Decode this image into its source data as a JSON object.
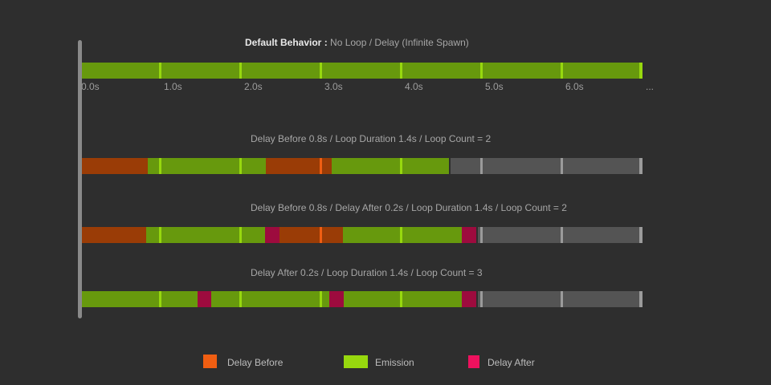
{
  "colors": {
    "background": "#2e2e2e",
    "axis": "#8a8a8a",
    "title_bright": "#e9e9e9",
    "title_text": "#a6a6a6",
    "tick_label": "#9d9d9d",
    "legend_text": "#bcbcbc",
    "emission": "#67990d",
    "emission_bright": "#97d80e",
    "delay_before": "#9a3c06",
    "delay_before_bright": "#f05e12",
    "delay_after": "#9d0b3e",
    "delay_after_bright": "#ee115e",
    "inactive": "#545454",
    "inactive_bright": "#9b9b9b"
  },
  "timeline": {
    "duration_s": 7,
    "tick_interval_s": 1,
    "axis_labels": [
      {
        "text": "0.0s",
        "t": 0
      },
      {
        "text": "1.0s",
        "t": 1
      },
      {
        "text": "2.0s",
        "t": 2
      },
      {
        "text": "3.0s",
        "t": 3
      },
      {
        "text": "4.0s",
        "t": 4
      },
      {
        "text": "5.0s",
        "t": 5
      },
      {
        "text": "6.0s",
        "t": 6
      },
      {
        "text": "...",
        "t": 7
      }
    ]
  },
  "tracks": [
    {
      "title_bold": "Default Behavior :",
      "title": "No Loop / Delay (Infinite Spawn)",
      "show_axis_labels": true,
      "segments": [
        {
          "kind": "emission",
          "start": 0,
          "end": 7
        }
      ]
    },
    {
      "title": "Delay Before 0.8s / Loop Duration 1.4s / Loop Count = 2",
      "segments": [
        {
          "kind": "delay_before",
          "start": 0,
          "end": 0.84
        },
        {
          "kind": "emission",
          "start": 0.84,
          "end": 2.31
        },
        {
          "kind": "delay_before",
          "start": 2.31,
          "end": 3.13
        },
        {
          "kind": "emission",
          "start": 3.13,
          "end": 4.59
        },
        {
          "kind": "inactive",
          "start": 4.59,
          "end": 7
        }
      ]
    },
    {
      "title": "Delay Before 0.8s / Delay After 0.2s / Loop Duration 1.4s / Loop Count = 2",
      "segments": [
        {
          "kind": "delay_before",
          "start": 0,
          "end": 0.82
        },
        {
          "kind": "emission",
          "start": 0.82,
          "end": 2.3
        },
        {
          "kind": "delay_after",
          "start": 2.3,
          "end": 2.48
        },
        {
          "kind": "delay_before",
          "start": 2.48,
          "end": 3.27
        },
        {
          "kind": "emission",
          "start": 3.27,
          "end": 4.75
        },
        {
          "kind": "delay_after",
          "start": 4.75,
          "end": 4.93
        },
        {
          "kind": "inactive",
          "start": 4.93,
          "end": 7
        }
      ]
    },
    {
      "title": "Delay After 0.2s / Loop Duration 1.4s / Loop Count = 3",
      "segments": [
        {
          "kind": "emission",
          "start": 0,
          "end": 1.46
        },
        {
          "kind": "delay_after",
          "start": 1.46,
          "end": 1.63
        },
        {
          "kind": "emission",
          "start": 1.63,
          "end": 3.1
        },
        {
          "kind": "delay_after",
          "start": 3.1,
          "end": 3.28
        },
        {
          "kind": "emission",
          "start": 3.28,
          "end": 4.75
        },
        {
          "kind": "delay_after",
          "start": 4.75,
          "end": 4.93
        },
        {
          "kind": "inactive",
          "start": 4.93,
          "end": 7
        }
      ]
    }
  ],
  "legend": [
    {
      "label": "Delay Before",
      "color_key": "delay_before_bright"
    },
    {
      "label": "Emission",
      "color_key": "emission_bright"
    },
    {
      "label": "Delay After",
      "color_key": "delay_after_bright"
    }
  ]
}
